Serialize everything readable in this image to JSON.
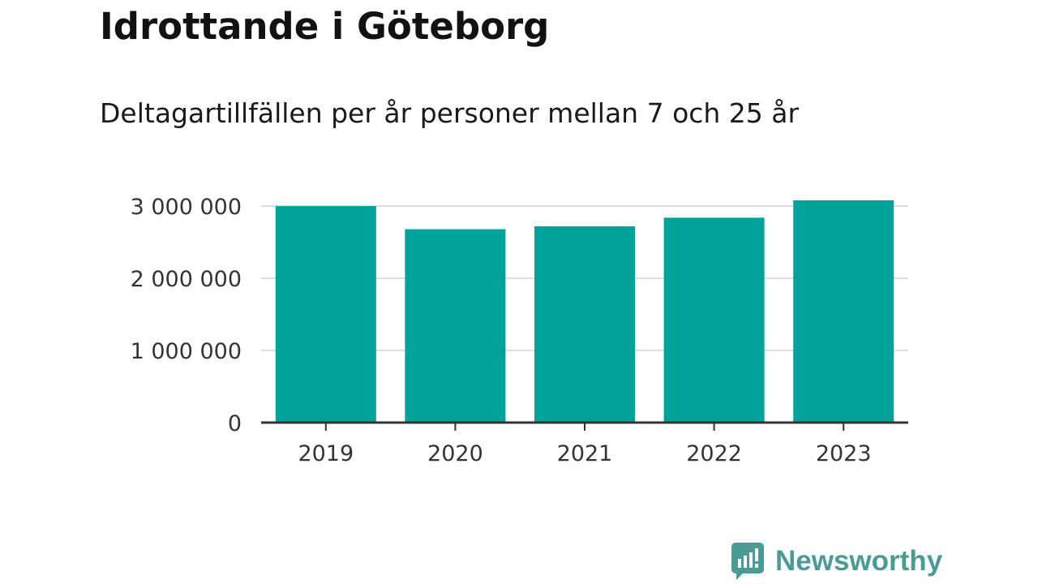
{
  "chart_data": {
    "type": "bar",
    "title": "Idrottande i Göteborg",
    "subtitle": "Deltagartillfällen per år personer mellan 7 och 25 år",
    "categories": [
      "2019",
      "2020",
      "2021",
      "2022",
      "2023"
    ],
    "values": [
      3000000,
      2680000,
      2720000,
      2840000,
      3080000
    ],
    "y_ticks": [
      0,
      1000000,
      2000000,
      3000000
    ],
    "y_tick_labels": [
      "0",
      "1 000 000",
      "2 000 000",
      "3 000 000"
    ],
    "ylim": [
      0,
      3080000
    ],
    "grid": true,
    "bar_color": "#00a39a",
    "xlabel": "",
    "ylabel": ""
  },
  "brand": {
    "name": "Newsworthy",
    "color": "#4a9b95",
    "icon": "newsworthy-logo-icon"
  }
}
